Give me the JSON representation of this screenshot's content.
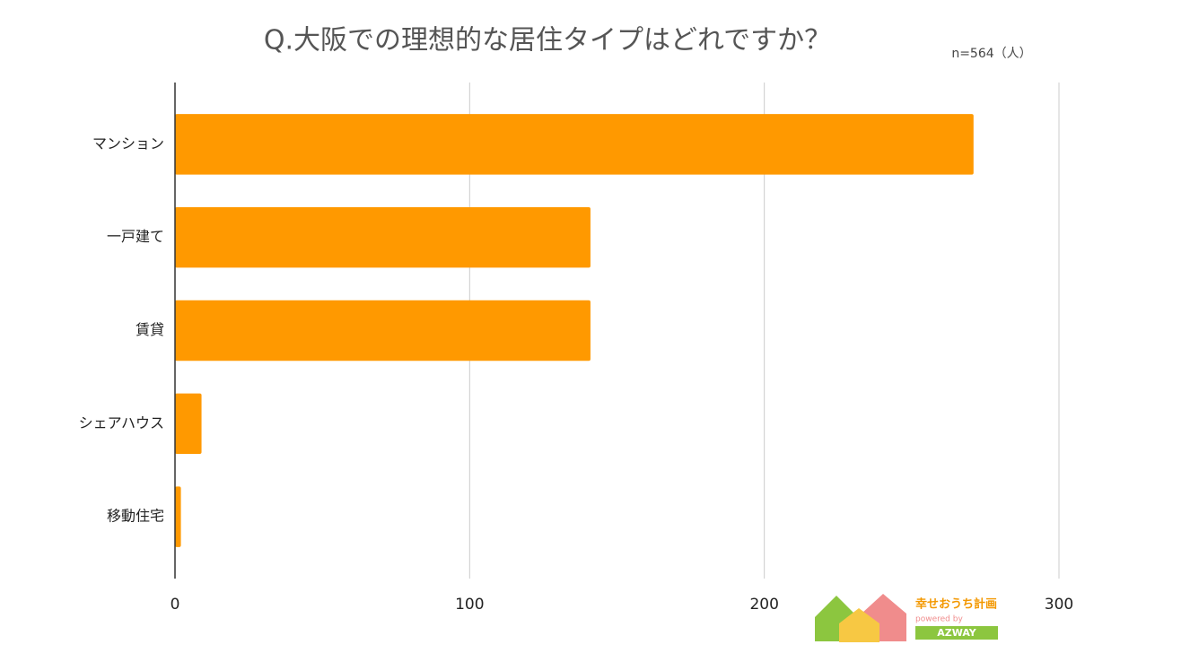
{
  "chart_data": {
    "type": "barh",
    "title": "Q.大阪での理想的な居住タイプはどれですか？",
    "subtitle": "n=564（人）",
    "categories": [
      "マンション",
      "一戸建て",
      "賃貸",
      "シェアハウス",
      "移動住宅"
    ],
    "values": [
      271,
      141,
      141,
      9,
      2
    ],
    "color": "#ff9900",
    "xlim": [
      0,
      300
    ],
    "xticks": [
      0,
      100,
      200,
      300
    ],
    "grid": true
  },
  "logo": {
    "name": "幸せおうち計画",
    "powered": "powered by",
    "brand": "AZWAY"
  }
}
